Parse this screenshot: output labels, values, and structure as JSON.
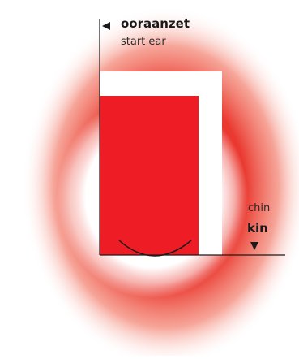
{
  "labels": {
    "top_nl": "ooraanzet",
    "top_en": "start ear",
    "bottom_en": "chin",
    "bottom_nl": "kin"
  },
  "colors": {
    "glow": "#e8281e",
    "rect": "#ee1c25",
    "line": "#1a1a1a",
    "background": "#ffffff"
  },
  "icons": {
    "top_arrow": "triangle-left-icon",
    "bottom_arrow": "triangle-down-icon"
  }
}
